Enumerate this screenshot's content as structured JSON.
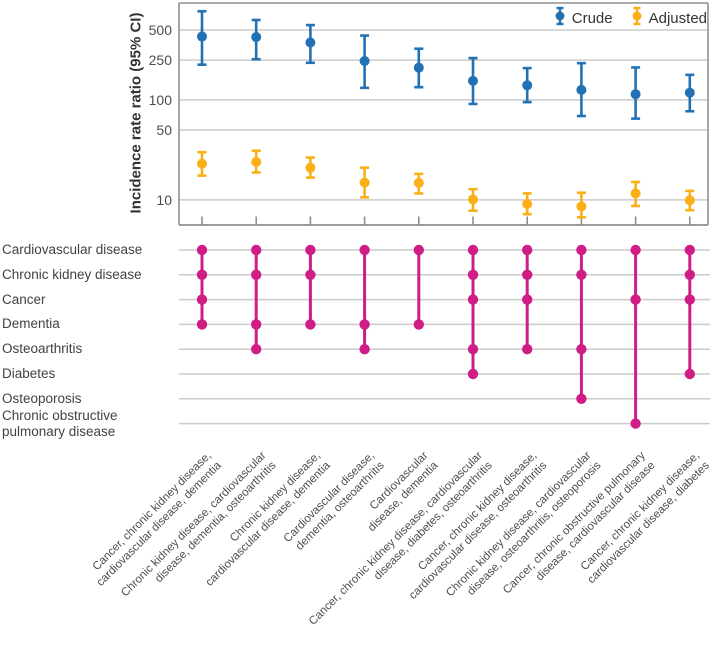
{
  "figure": {
    "background": "#ffffff",
    "colors": {
      "crude": "#2271b5",
      "adjusted": "#fbaf17",
      "combination": "#cf1c86",
      "gridline": "#cbcbcb",
      "axis": "#8f8f8f",
      "text_dark": "#333333",
      "text_gray": "#4d4d4d"
    },
    "legend": [
      {
        "name": "Crude",
        "color": "#2271b5"
      },
      {
        "name": "Adjusted",
        "color": "#fbaf17"
      }
    ]
  },
  "chart_data": {
    "type": "scatter",
    "subtype": "dot-and-whisker forest plot (crude vs adjusted incidence rate ratios) above an UpSet-style disease-combination matrix",
    "title": "",
    "xlabel": "",
    "ylabel": "Incidence rate ratio (95% CI)",
    "y_scale": "log",
    "y_ticks": [
      500,
      250,
      100,
      50,
      10
    ],
    "ylim": [
      5.6,
      930
    ],
    "grid": true,
    "legend_position": "top-right inside plot",
    "series": [
      {
        "name": "Crude",
        "color": "#2271b5",
        "points": [
          {
            "irr": 430,
            "lo": 225,
            "hi": 770
          },
          {
            "irr": 425,
            "lo": 255,
            "hi": 630
          },
          {
            "irr": 375,
            "lo": 235,
            "hi": 560
          },
          {
            "irr": 245,
            "lo": 132,
            "hi": 440
          },
          {
            "irr": 210,
            "lo": 134,
            "hi": 325
          },
          {
            "irr": 155,
            "lo": 91,
            "hi": 262
          },
          {
            "irr": 140,
            "lo": 95,
            "hi": 208
          },
          {
            "irr": 126,
            "lo": 69,
            "hi": 233
          },
          {
            "irr": 114,
            "lo": 65,
            "hi": 211
          },
          {
            "irr": 118,
            "lo": 77,
            "hi": 178
          }
        ]
      },
      {
        "name": "Adjusted",
        "color": "#fbaf17",
        "points": [
          {
            "irr": 23,
            "lo": 17.5,
            "hi": 30
          },
          {
            "irr": 24,
            "lo": 18.8,
            "hi": 31
          },
          {
            "irr": 21,
            "lo": 16.7,
            "hi": 26.5
          },
          {
            "irr": 14.9,
            "lo": 10.6,
            "hi": 21
          },
          {
            "irr": 14.8,
            "lo": 11.6,
            "hi": 18.2
          },
          {
            "irr": 10.1,
            "lo": 7.8,
            "hi": 12.8
          },
          {
            "irr": 9.1,
            "lo": 7.2,
            "hi": 11.6
          },
          {
            "irr": 8.6,
            "lo": 6.7,
            "hi": 11.8
          },
          {
            "irr": 11.6,
            "lo": 8.7,
            "hi": 15.1
          },
          {
            "irr": 9.9,
            "lo": 7.9,
            "hi": 12.3
          }
        ]
      }
    ],
    "matrix_rows": [
      {
        "label": "Cardiovascular disease",
        "lines": [
          "Cardiovascular disease"
        ]
      },
      {
        "label": "Chronic kidney disease",
        "lines": [
          "Chronic kidney disease"
        ]
      },
      {
        "label": "Cancer",
        "lines": [
          "Cancer"
        ]
      },
      {
        "label": "Dementia",
        "lines": [
          "Dementia"
        ]
      },
      {
        "label": "Osteoarthritis",
        "lines": [
          "Osteoarthritis"
        ]
      },
      {
        "label": "Diabetes",
        "lines": [
          "Diabetes"
        ]
      },
      {
        "label": "Osteoporosis",
        "lines": [
          "Osteoporosis"
        ]
      },
      {
        "label": "Chronic obstructive pulmonary disease",
        "lines": [
          "Chronic obstructive",
          "pulmonary disease"
        ]
      }
    ],
    "combinations": [
      {
        "label": "Cancer, chronic kidney disease, cardiovascular disease, dementia",
        "label_lines": [
          "Cancer, chronic kidney disease,",
          "cardiovascular disease, dementia"
        ],
        "row_indices": [
          0,
          1,
          2,
          3
        ]
      },
      {
        "label": "Chronic kidney disease, cardiovascular disease, dementia, osteoarthritis",
        "label_lines": [
          "Chronic kidney disease, cardiovascular",
          "disease, dementia, osteoarthritis"
        ],
        "row_indices": [
          0,
          1,
          3,
          4
        ]
      },
      {
        "label": "Chronic kidney disease, cardiovascular disease, dementia",
        "label_lines": [
          "Chronic kidney disease,",
          "cardiovascular disease, dementia"
        ],
        "row_indices": [
          0,
          1,
          3
        ]
      },
      {
        "label": "Cardiovascular disease, dementia, osteoarthritis",
        "label_lines": [
          "Cardiovascular disease,",
          "dementia, osteoarthritis"
        ],
        "row_indices": [
          0,
          3,
          4
        ]
      },
      {
        "label": "Cardiovascular disease, dementia",
        "label_lines": [
          "Cardiovascular",
          "disease, dementia"
        ],
        "row_indices": [
          0,
          3
        ]
      },
      {
        "label": "Cancer, chronic kidney disease, cardiovascular disease, diabetes, osteoarthritis",
        "label_lines": [
          "Cancer, chronic kidney disease, cardiovascular",
          "disease, diabetes, osteoarthritis"
        ],
        "row_indices": [
          0,
          1,
          2,
          4,
          5
        ]
      },
      {
        "label": "Cancer, chronic kidney disease, cardiovascular disease, osteoarthritis",
        "label_lines": [
          "Cancer, chronic kidney disease,",
          "cardiovascular disease, osteoarthritis"
        ],
        "row_indices": [
          0,
          1,
          2,
          4
        ]
      },
      {
        "label": "Chronic kidney disease, cardiovascular disease, osteoarthritis, osteoporosis",
        "label_lines": [
          "Chronic kidney disease, cardiovascular",
          "disease, osteoarthritis, osteoporosis"
        ],
        "row_indices": [
          0,
          1,
          4,
          6
        ]
      },
      {
        "label": "Cancer, chronic obstructive pulmonary disease, cardiovascular disease",
        "label_lines": [
          "Cancer, chronic obstructive pulmonary",
          "disease, cardiovascular disease"
        ],
        "row_indices": [
          0,
          2,
          7
        ]
      },
      {
        "label": "Cancer, chronic kidney disease, cardiovascular disease, diabetes",
        "label_lines": [
          "Cancer, chronic kidney disease,",
          "cardiovascular disease, diabetes"
        ],
        "row_indices": [
          0,
          1,
          2,
          5
        ]
      }
    ]
  }
}
